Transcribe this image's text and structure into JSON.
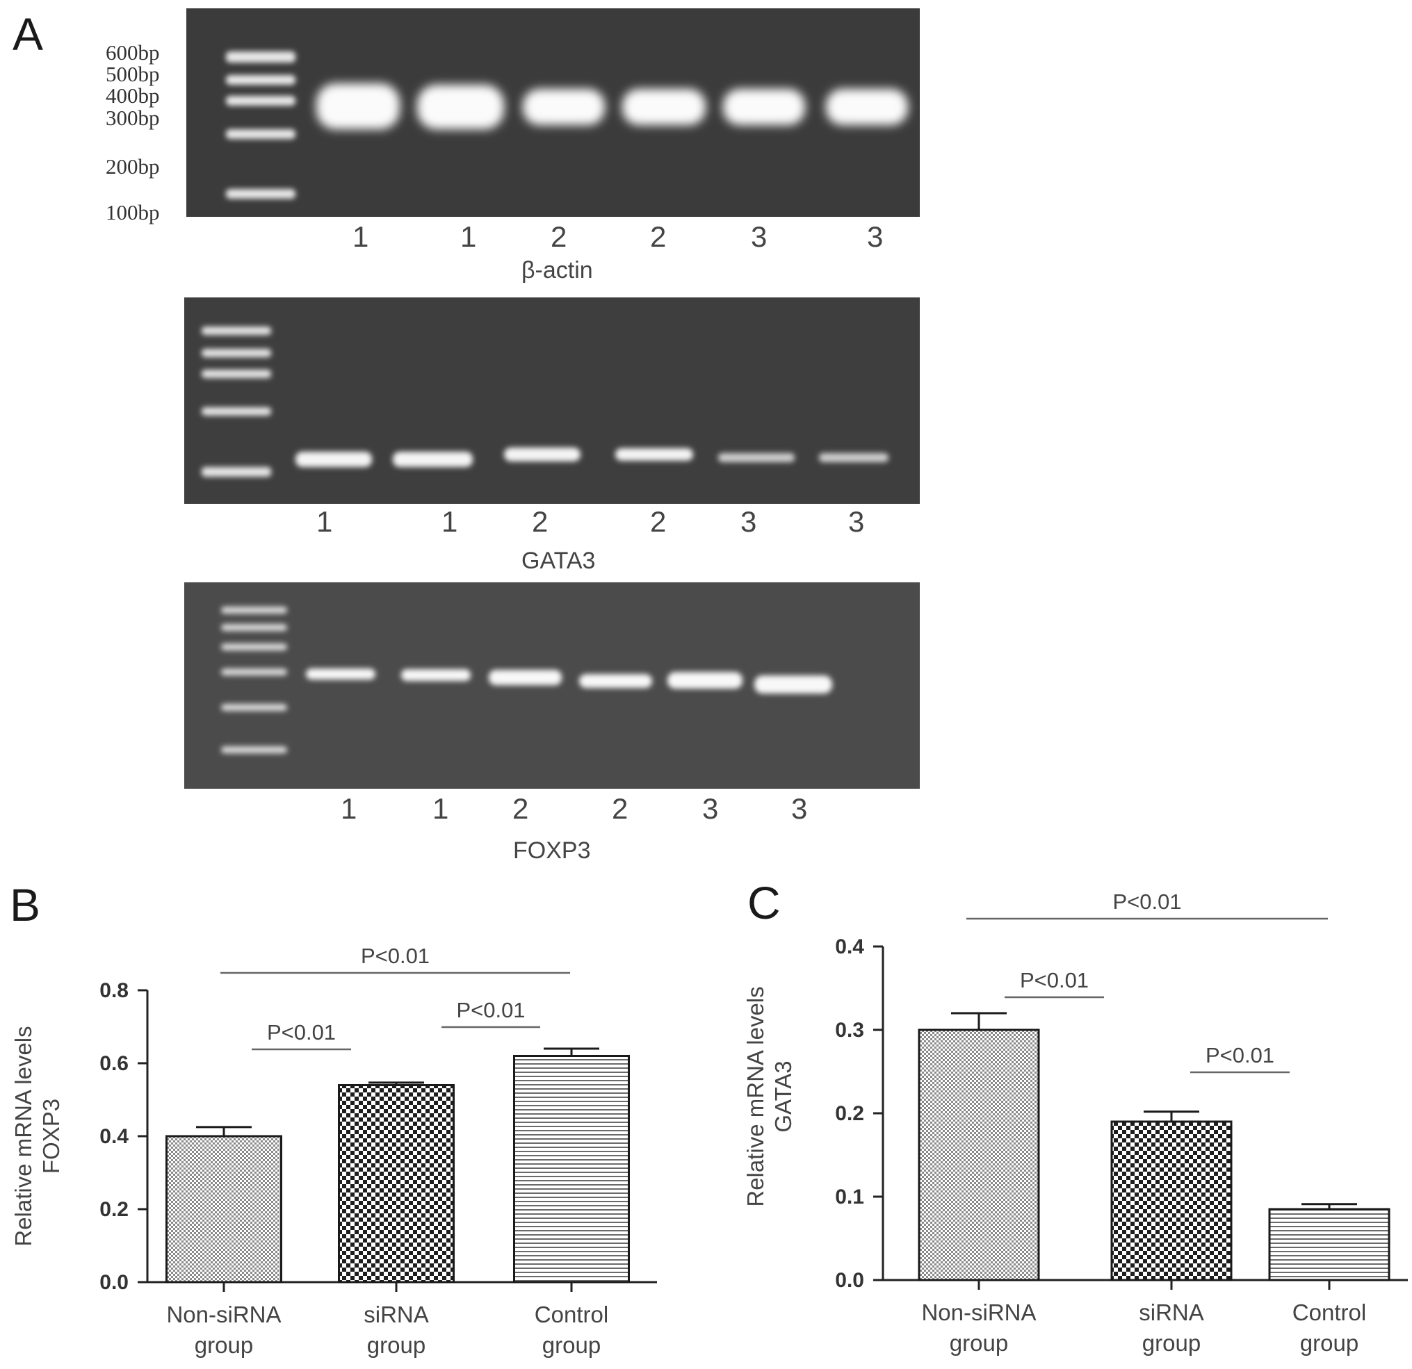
{
  "panels": {
    "a": "A",
    "b": "B",
    "c": "C"
  },
  "gels": [
    {
      "name": "β-actin",
      "lanes": [
        "1",
        "1",
        "2",
        "2",
        "3",
        "3"
      ],
      "ladder_labels": [
        "600bp",
        "500bp",
        "400bp",
        "300bp",
        "200bp",
        "100bp"
      ]
    },
    {
      "name": "GATA3",
      "lanes": [
        "1",
        "1",
        "2",
        "2",
        "3",
        "3"
      ]
    },
    {
      "name": "FOXP3",
      "lanes": [
        "1",
        "1",
        "2",
        "2",
        "3",
        "3"
      ]
    }
  ],
  "chart_data": [
    {
      "type": "bar",
      "panel": "B",
      "categories": [
        [
          "Non-siRNA",
          "group"
        ],
        [
          "siRNA",
          "group"
        ],
        [
          "Control",
          "group"
        ]
      ],
      "values": [
        0.4,
        0.54,
        0.62
      ],
      "errors": [
        0.025,
        0.007,
        0.02
      ],
      "ylabel": [
        "Relative mRNA levels",
        "FOXP3"
      ],
      "ylim": [
        0,
        0.8
      ],
      "yticks": [
        "0.0",
        "0.2",
        "0.4",
        "0.6",
        "0.8"
      ],
      "fills": [
        "fine-dot",
        "checker",
        "horizontal-lines"
      ],
      "annotations": [
        {
          "text": "P<0.01",
          "from": 0,
          "to": 1
        },
        {
          "text": "P<0.01",
          "from": 1,
          "to": 2
        },
        {
          "text": "P<0.01",
          "from": 0,
          "to": 2
        }
      ]
    },
    {
      "type": "bar",
      "panel": "C",
      "categories": [
        [
          "Non-siRNA",
          "group"
        ],
        [
          "siRNA",
          "group"
        ],
        [
          "Control",
          "group"
        ]
      ],
      "values": [
        0.3,
        0.19,
        0.085
      ],
      "errors": [
        0.02,
        0.012,
        0.006
      ],
      "ylabel": [
        "Relative mRNA levels",
        "GATA3"
      ],
      "ylim": [
        0,
        0.4
      ],
      "yticks": [
        "0.0",
        "0.1",
        "0.2",
        "0.3",
        "0.4"
      ],
      "fills": [
        "fine-dot",
        "checker",
        "horizontal-lines"
      ],
      "annotations": [
        {
          "text": "P<0.01",
          "from": 0,
          "to": 1
        },
        {
          "text": "P<0.01",
          "from": 1,
          "to": 2
        },
        {
          "text": "P<0.01",
          "from": 0,
          "to": 2
        }
      ]
    }
  ]
}
